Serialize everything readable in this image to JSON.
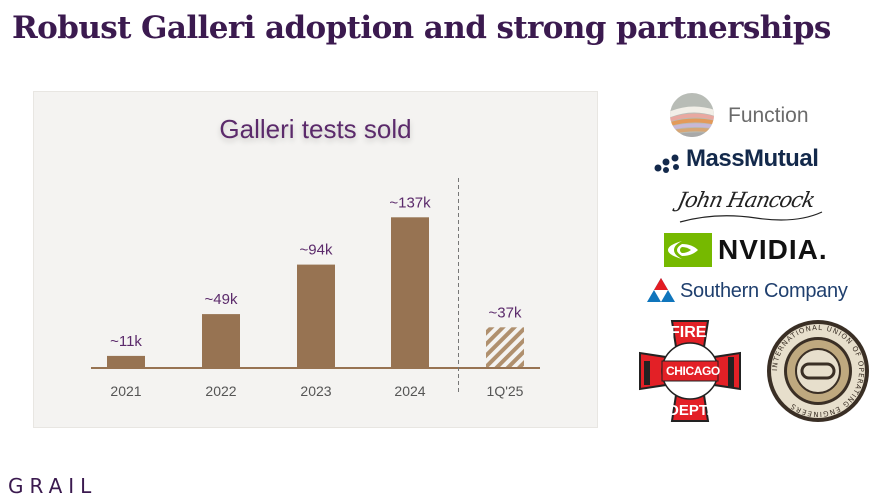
{
  "slide": {
    "title": "Robust Galleri adoption and strong partnerships",
    "footer_brand": "GRAIL"
  },
  "chart_data": {
    "type": "bar",
    "title": "Galleri tests sold",
    "categories": [
      "2021",
      "2022",
      "2023",
      "2024",
      "1Q'25"
    ],
    "values": [
      11,
      49,
      94,
      137,
      37
    ],
    "value_labels": [
      "~11k",
      "~49k",
      "~94k",
      "~137k",
      "~37k"
    ],
    "unit": "k",
    "ylim": [
      0,
      150
    ],
    "grid": false,
    "legend": "none",
    "divider_before": "1Q'25",
    "hatched_categories": [
      "1Q'25"
    ],
    "colors": {
      "bar": "#977352",
      "hatch": "#b0906e",
      "label": "#5b2a6b",
      "axis": "#977352"
    }
  },
  "partners": {
    "function": "Function",
    "massmutual": "MassMutual",
    "john_hancock": "John Hancock",
    "nvidia": "NVIDIA.",
    "southern_company": "Southern Company",
    "chicago_fire": {
      "top": "FIRE",
      "middle": "CHICAGO",
      "bottom": "DEPT."
    },
    "iuoe_seal": "INTERNATIONAL UNION OF OPERATING ENGINEERS"
  },
  "colors": {
    "title": "#3b1a4f",
    "nvidia_green": "#76b900",
    "massmutual_navy": "#13294b",
    "southern_red": "#e31c23",
    "southern_blue": "#0f75bc",
    "fire_red": "#e32026"
  }
}
